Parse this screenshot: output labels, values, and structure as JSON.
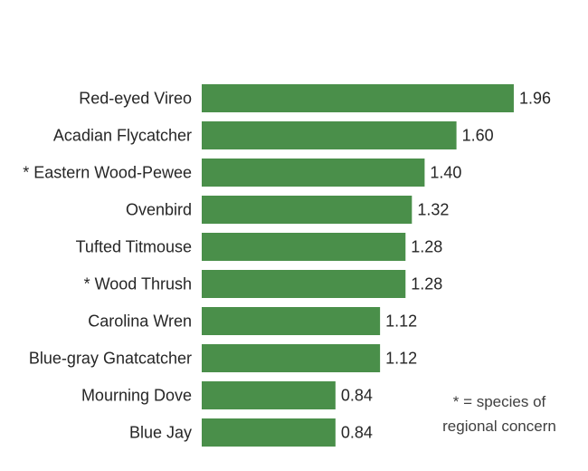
{
  "chart_data": {
    "type": "bar",
    "orientation": "horizontal",
    "categories": [
      "Red-eyed Vireo",
      "Acadian Flycatcher",
      "* Eastern Wood-Pewee",
      "Ovenbird",
      "Tufted Titmouse",
      "* Wood Thrush",
      "Carolina Wren",
      "Blue-gray Gnatcatcher",
      "Mourning Dove",
      "Blue Jay"
    ],
    "values": [
      1.96,
      1.6,
      1.4,
      1.32,
      1.28,
      1.28,
      1.12,
      1.12,
      0.84,
      0.84
    ],
    "value_labels": [
      "1.96",
      "1.60",
      "1.40",
      "1.32",
      "1.28",
      "1.28",
      "1.12",
      "1.12",
      "0.84",
      "0.84"
    ],
    "title": "",
    "xlabel": "",
    "ylabel": "",
    "xlim": [
      0,
      2.0
    ],
    "grid": false,
    "bar_color": "#4a8f4a",
    "annotation": [
      "* = species of",
      "regional concern"
    ]
  }
}
